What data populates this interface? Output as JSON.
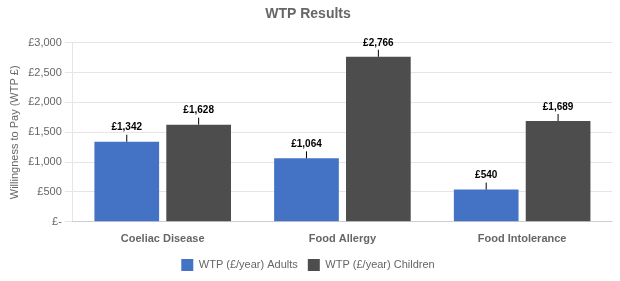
{
  "chart_data": {
    "type": "bar",
    "title": "WTP Results",
    "categories": [
      "Coeliac Disease",
      "Food Allergy",
      "Food Intolerance"
    ],
    "series": [
      {
        "name": "WTP (£/year) Adults",
        "color": "#4472C4",
        "values": [
          1342,
          1064,
          540
        ],
        "value_labels": [
          "£1,342",
          "£1,064",
          "£540"
        ]
      },
      {
        "name": "WTP (£/year) Children",
        "color": "#4d4d4d",
        "values": [
          1628,
          2766,
          1689
        ],
        "value_labels": [
          "£1,628",
          "£2,766",
          "£1,689"
        ]
      }
    ],
    "ylabel": "Willingness to Pay (WTP £)",
    "ylim": [
      0,
      3000
    ],
    "yticks": [
      {
        "value": 0,
        "label": "£-"
      },
      {
        "value": 500,
        "label": "£500"
      },
      {
        "value": 1000,
        "label": "£1,000"
      },
      {
        "value": 1500,
        "label": "£1,500"
      },
      {
        "value": 2000,
        "label": "£2,000"
      },
      {
        "value": 2500,
        "label": "£2,500"
      },
      {
        "value": 3000,
        "label": "£3,000"
      }
    ],
    "grid": true,
    "legend": "bottom",
    "data_labels": true
  }
}
